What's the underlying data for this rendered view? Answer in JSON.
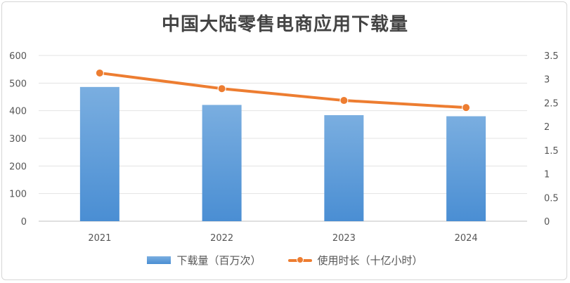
{
  "chart_data": {
    "type": "bar",
    "title": "中国大陆零售电商应用下载量",
    "categories": [
      "2021",
      "2022",
      "2023",
      "2024"
    ],
    "series": [
      {
        "name": "下载量（百万次）",
        "type": "bar",
        "axis": "left",
        "values": [
          486,
          421,
          384,
          380
        ],
        "color": "#5b9bd5"
      },
      {
        "name": "使用时长（十亿小时）",
        "type": "line",
        "axis": "right",
        "values": [
          3.13,
          2.8,
          2.55,
          2.4
        ],
        "color": "#ed7d31"
      }
    ],
    "y_left": {
      "min": 0,
      "max": 600,
      "ticks": [
        "0",
        "100",
        "200",
        "300",
        "400",
        "500",
        "600"
      ]
    },
    "y_right": {
      "min": 0,
      "max": 3.5,
      "ticks": [
        "0",
        "0.5",
        "1",
        "1.5",
        "2",
        "2.5",
        "3",
        "3.5"
      ]
    },
    "grid": true,
    "legend_position": "bottom"
  }
}
